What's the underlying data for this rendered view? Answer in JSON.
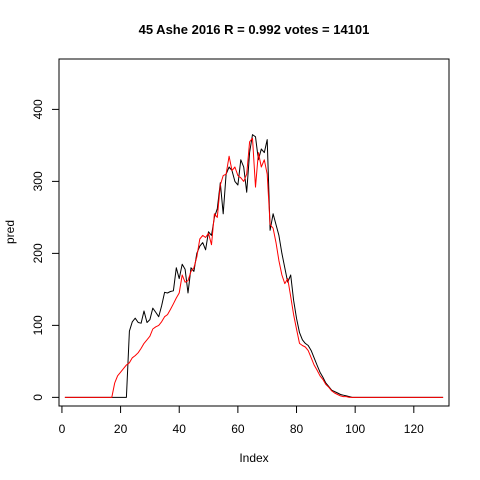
{
  "chart_data": {
    "type": "line",
    "title": "45 Ashe 2016 R = 0.992 votes = 14101",
    "xlabel": "Index",
    "ylabel": "pred",
    "xlim": [
      -1,
      132
    ],
    "ylim": [
      -12,
      470
    ],
    "x_ticks": [
      0,
      20,
      40,
      60,
      80,
      100,
      120
    ],
    "y_ticks": [
      0,
      100,
      200,
      300,
      400
    ],
    "grid": false,
    "legend": "none",
    "series": [
      {
        "color": "#000000",
        "x": [
          1,
          2,
          3,
          4,
          5,
          6,
          7,
          8,
          9,
          10,
          11,
          12,
          13,
          14,
          15,
          16,
          17,
          18,
          19,
          20,
          21,
          22,
          23,
          24,
          25,
          26,
          27,
          28,
          29,
          30,
          31,
          32,
          33,
          34,
          35,
          36,
          37,
          38,
          39,
          40,
          41,
          42,
          43,
          44,
          45,
          46,
          47,
          48,
          49,
          50,
          51,
          52,
          53,
          54,
          55,
          56,
          57,
          58,
          59,
          60,
          61,
          62,
          63,
          64,
          65,
          66,
          67,
          68,
          69,
          70,
          71,
          72,
          73,
          74,
          75,
          76,
          77,
          78,
          79,
          80,
          81,
          82,
          83,
          84,
          85,
          86,
          87,
          88,
          89,
          90,
          91,
          92,
          93,
          94,
          95,
          96,
          97,
          98,
          99,
          100,
          101,
          102,
          103,
          104,
          105,
          106,
          107,
          108,
          109,
          110,
          111,
          112,
          113,
          114,
          115,
          116,
          117,
          118,
          119,
          120,
          121,
          122,
          123,
          124,
          125,
          126,
          127,
          128,
          129,
          130
        ],
        "values": [
          0,
          0,
          0,
          0,
          0,
          0,
          0,
          0,
          0,
          0,
          0,
          0,
          0,
          0,
          0,
          0,
          0,
          0,
          0,
          0,
          0,
          0,
          92,
          105,
          110,
          104,
          103,
          120,
          104,
          108,
          124,
          118,
          112,
          127,
          146,
          145,
          147,
          148,
          180,
          165,
          185,
          178,
          145,
          180,
          175,
          200,
          210,
          215,
          205,
          230,
          225,
          250,
          262,
          298,
          255,
          310,
          320,
          315,
          300,
          295,
          330,
          320,
          285,
          340,
          365,
          362,
          330,
          345,
          340,
          358,
          232,
          255,
          240,
          225,
          200,
          180,
          160,
          170,
          135,
          110,
          90,
          80,
          75,
          72,
          65,
          55,
          45,
          35,
          28,
          20,
          15,
          10,
          8,
          6,
          4,
          3,
          2,
          1,
          0,
          0,
          0,
          0,
          0,
          0,
          0,
          0,
          0,
          0,
          0,
          0,
          0,
          0,
          0,
          0,
          0,
          0,
          0,
          0,
          0,
          0,
          0,
          0,
          0,
          0,
          0,
          0,
          0,
          0,
          0,
          0
        ]
      },
      {
        "color": "#ff0000",
        "x": [
          1,
          2,
          3,
          4,
          5,
          6,
          7,
          8,
          9,
          10,
          11,
          12,
          13,
          14,
          15,
          16,
          17,
          18,
          19,
          20,
          21,
          22,
          23,
          24,
          25,
          26,
          27,
          28,
          29,
          30,
          31,
          32,
          33,
          34,
          35,
          36,
          37,
          38,
          39,
          40,
          41,
          42,
          43,
          44,
          45,
          46,
          47,
          48,
          49,
          50,
          51,
          52,
          53,
          54,
          55,
          56,
          57,
          58,
          59,
          60,
          61,
          62,
          63,
          64,
          65,
          66,
          67,
          68,
          69,
          70,
          71,
          72,
          73,
          74,
          75,
          76,
          77,
          78,
          79,
          80,
          81,
          82,
          83,
          84,
          85,
          86,
          87,
          88,
          89,
          90,
          91,
          92,
          93,
          94,
          95,
          96,
          97,
          98,
          99,
          100,
          101,
          102,
          103,
          104,
          105,
          106,
          107,
          108,
          109,
          110,
          111,
          112,
          113,
          114,
          115,
          116,
          117,
          118,
          119,
          120,
          121,
          122,
          123,
          124,
          125,
          126,
          127,
          128,
          129,
          130
        ],
        "values": [
          0,
          0,
          0,
          0,
          0,
          0,
          0,
          0,
          0,
          0,
          0,
          0,
          0,
          0,
          0,
          0,
          0,
          20,
          30,
          35,
          40,
          45,
          48,
          55,
          58,
          62,
          68,
          75,
          80,
          85,
          95,
          98,
          100,
          105,
          112,
          115,
          122,
          130,
          138,
          145,
          170,
          160,
          162,
          175,
          180,
          195,
          220,
          225,
          222,
          228,
          212,
          255,
          250,
          295,
          308,
          310,
          335,
          315,
          320,
          308,
          305,
          300,
          310,
          355,
          360,
          292,
          340,
          320,
          330,
          310,
          240,
          235,
          215,
          190,
          170,
          158,
          165,
          140,
          115,
          95,
          75,
          72,
          70,
          65,
          55,
          45,
          38,
          30,
          25,
          18,
          14,
          9,
          6,
          4,
          2,
          1,
          1,
          0,
          0,
          0,
          0,
          0,
          0,
          0,
          0,
          0,
          0,
          0,
          0,
          0,
          0,
          0,
          0,
          0,
          0,
          0,
          0,
          0,
          0,
          0,
          0,
          0,
          0,
          0,
          0,
          0,
          0,
          0,
          0,
          0
        ]
      }
    ]
  }
}
